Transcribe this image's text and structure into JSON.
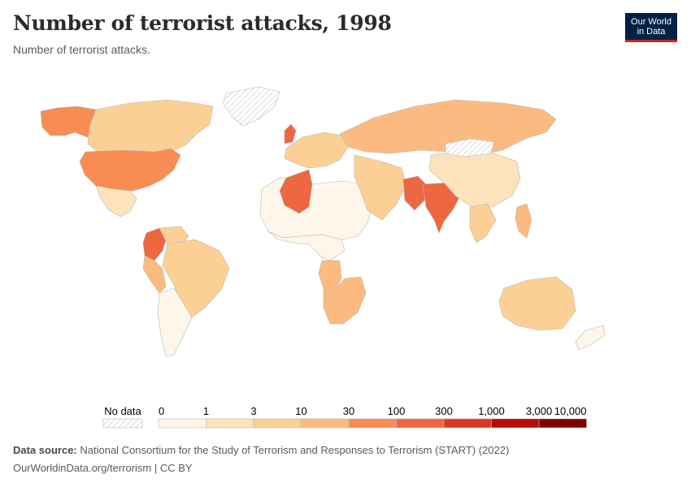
{
  "header": {
    "title": "Number of terrorist attacks, 1998",
    "subtitle": "Number of terrorist attacks."
  },
  "logo": {
    "line1": "Our World",
    "line2": "in Data"
  },
  "legend": {
    "no_data_label": "No data",
    "bins": [
      {
        "min": "0",
        "max": "1",
        "color": "#fef6ea"
      },
      {
        "min": "1",
        "max": "3",
        "color": "#fde3bc"
      },
      {
        "min": "3",
        "max": "10",
        "color": "#fcd095"
      },
      {
        "min": "10",
        "max": "30",
        "color": "#fbbb80"
      },
      {
        "min": "30",
        "max": "100",
        "color": "#f98c52"
      },
      {
        "min": "100",
        "max": "300",
        "color": "#ee6740"
      },
      {
        "min": "300",
        "max": "1,000",
        "color": "#d93624"
      },
      {
        "min": "1,000",
        "max": "3,000",
        "color": "#b70b07"
      },
      {
        "min": "3,000",
        "max": "10,000",
        "color": "#800000"
      }
    ],
    "ticks": [
      "0",
      "1",
      "3",
      "10",
      "30",
      "100",
      "300",
      "1,000",
      "3,000",
      "10,000"
    ]
  },
  "map_regions": [
    {
      "name": "alaska",
      "bin": 4
    },
    {
      "name": "canada",
      "bin": 2
    },
    {
      "name": "greenland",
      "bin": -1
    },
    {
      "name": "united-states",
      "bin": 4
    },
    {
      "name": "mexico",
      "bin": 1
    },
    {
      "name": "colombia",
      "bin": 5
    },
    {
      "name": "venezuela",
      "bin": 2
    },
    {
      "name": "brazil",
      "bin": 2
    },
    {
      "name": "peru",
      "bin": 3
    },
    {
      "name": "argentina-chile",
      "bin": 0
    },
    {
      "name": "united-kingdom",
      "bin": 5
    },
    {
      "name": "western-europe",
      "bin": 2
    },
    {
      "name": "russia",
      "bin": 3
    },
    {
      "name": "algeria",
      "bin": 5
    },
    {
      "name": "north-africa",
      "bin": 0
    },
    {
      "name": "west-africa",
      "bin": 0
    },
    {
      "name": "angola",
      "bin": 3
    },
    {
      "name": "southern-africa",
      "bin": 3
    },
    {
      "name": "middle-east",
      "bin": 2
    },
    {
      "name": "pakistan",
      "bin": 5
    },
    {
      "name": "india",
      "bin": 5
    },
    {
      "name": "china",
      "bin": 1
    },
    {
      "name": "mongolia",
      "bin": -1
    },
    {
      "name": "southeast-asia",
      "bin": 2
    },
    {
      "name": "philippines",
      "bin": 3
    },
    {
      "name": "australia",
      "bin": 2
    },
    {
      "name": "new-zealand",
      "bin": 0
    }
  ],
  "footer": {
    "source_label": "Data source:",
    "source_text": "National Consortium for the Study of Terrorism and Responses to Terrorism (START) (2022)",
    "link_text": "OurWorldinData.org/terrorism | CC BY"
  }
}
